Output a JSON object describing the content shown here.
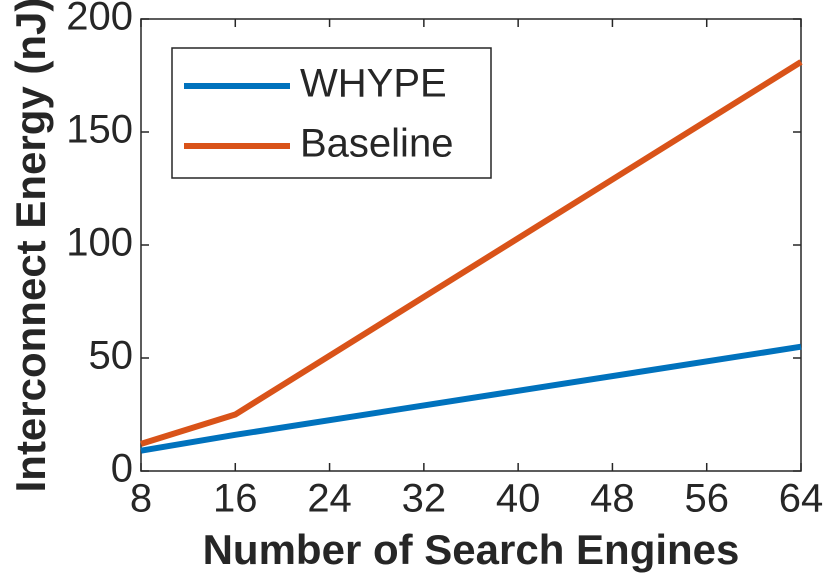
{
  "chart_data": {
    "type": "line",
    "xlabel": "Number of Search Engines",
    "ylabel": "Interconnect Energy (nJ)",
    "x": [
      8,
      16,
      32,
      64
    ],
    "series": [
      {
        "name": "WHYPE",
        "color": "#0072bd",
        "values": [
          9,
          16,
          29,
          55
        ]
      },
      {
        "name": "Baseline",
        "color": "#d95319",
        "values": [
          12,
          25,
          77,
          181
        ]
      }
    ],
    "xlim": [
      8,
      64
    ],
    "xticks": [
      8,
      16,
      24,
      32,
      40,
      48,
      56,
      64
    ],
    "ylim": [
      0,
      200
    ],
    "yticks": [
      0,
      50,
      100,
      150,
      200
    ],
    "legend": "upper-left"
  }
}
